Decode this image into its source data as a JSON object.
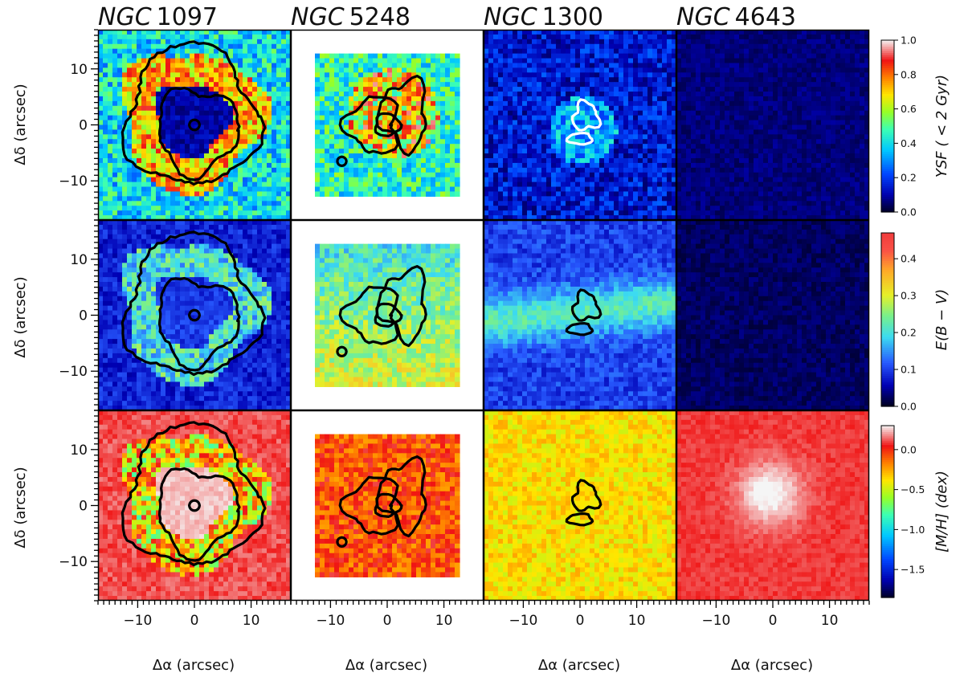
{
  "figure": {
    "galaxies": [
      {
        "prefix": "NGC",
        "number": "1097"
      },
      {
        "prefix": "NGC",
        "number": "5248"
      },
      {
        "prefix": "NGC",
        "number": "1300"
      },
      {
        "prefix": "NGC",
        "number": "4643"
      }
    ],
    "ylabel": "Δδ (arcsec)",
    "xlabel": "Δα (arcsec)"
  },
  "chart_data": {
    "type": "heatmap",
    "x_range": [
      -17,
      17
    ],
    "y_range": [
      -17,
      17
    ],
    "x_ticks": [
      -10,
      0,
      10
    ],
    "y_ticks": [
      -10,
      0,
      10
    ],
    "x_tick_labels": [
      "−10",
      "0",
      "10"
    ],
    "y_tick_labels": [
      "−10",
      "0",
      "10"
    ],
    "rows": [
      {
        "quantity": "YSF ( < 2 Gyr)",
        "colorbar_label": "YSF ( < 2 Gyr)",
        "range": [
          0.0,
          1.0
        ],
        "ticks": [
          0.0,
          0.2,
          0.4,
          0.6,
          0.8,
          1.0
        ],
        "tick_labels": [
          "0.0",
          "0.2",
          "0.4",
          "0.6",
          "0.8",
          "1.0"
        ],
        "colormap": "jet-white",
        "contour_color": "#000000",
        "contour_color_ngc1300": "#ffffff"
      },
      {
        "quantity": "E(B − V)",
        "colorbar_label": "E(B − V)",
        "range": [
          0.0,
          0.47
        ],
        "ticks": [
          0.0,
          0.1,
          0.2,
          0.3,
          0.4
        ],
        "tick_labels": [
          "0.0",
          "0.1",
          "0.2",
          "0.3",
          "0.4"
        ],
        "colormap": "jet-light",
        "contour_color": "#000000"
      },
      {
        "quantity": "[M/H] (dex)",
        "colorbar_label": "[M/H] (dex)",
        "range": [
          -1.85,
          0.3
        ],
        "ticks": [
          0.0,
          -0.5,
          -1.0,
          -1.5
        ],
        "tick_labels": [
          "0.0",
          "−0.5",
          "−1.0",
          "−1.5"
        ],
        "colormap": "jet-white",
        "contour_color": "#000000"
      }
    ],
    "panel_fields": {
      "NGC 1097": {
        "YSF ( < 2 Gyr)": "low (~0.1) inside the ring, high (0.6–0.9) along the star-forming ring, ~0.3–0.5 outside",
        "E(B − V)": "~0.1 centre, 0.15–0.3 on the ring",
        "[M/H] (dex)": "~0.2 centre, −0.5 to −1.6 knots on the ring, ~0.1 outside"
      },
      "NGC 5248": {
        "YSF ( < 2 Gyr)": "mixed 0.3–0.9 with contours of star-forming knots",
        "E(B − V)": "0.2–0.35 gradient",
        "[M/H] (dex)": "~0.0 to −0.3, a few blue knots"
      },
      "NGC 1300": {
        "YSF ( < 2 Gyr)": "~0.05–0.3, white contours near the centre",
        "E(B − V)": "0.1–0.25, dust lane",
        "[M/H] (dex)": "~−0.3 to −0.5"
      },
      "NGC 4643": {
        "YSF ( < 2 Gyr)": "~0.0–0.05 everywhere",
        "E(B − V)": "~0.0–0.03",
        "[M/H] (dex)": "~0.0 outer, up to ~0.3 at the centre"
      }
    }
  }
}
